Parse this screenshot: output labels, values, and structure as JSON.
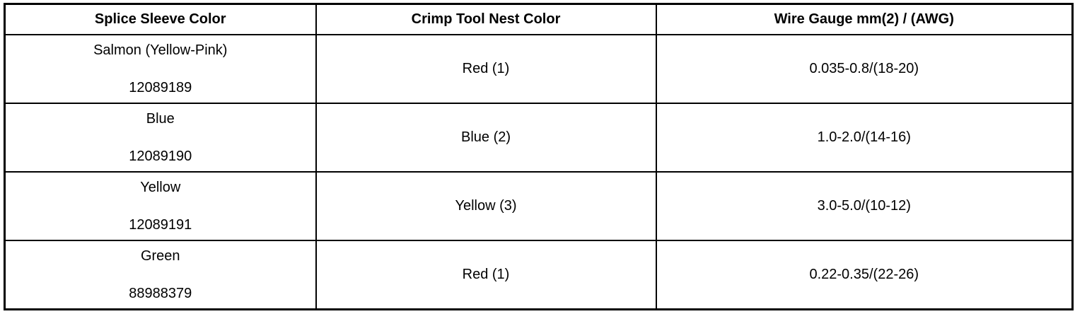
{
  "table": {
    "headers": [
      "Splice Sleeve Color",
      "Crimp Tool Nest Color",
      "Wire Gauge mm(2) / (AWG)"
    ],
    "rows": [
      {
        "sleeve_color": "Salmon (Yellow-Pink)",
        "part_number": "12089189",
        "nest_color": "Red (1)",
        "wire_gauge": "0.035-0.8/(18-20)"
      },
      {
        "sleeve_color": "Blue",
        "part_number": "12089190",
        "nest_color": "Blue (2)",
        "wire_gauge": "1.0-2.0/(14-16)"
      },
      {
        "sleeve_color": "Yellow",
        "part_number": "12089191",
        "nest_color": "Yellow (3)",
        "wire_gauge": "3.0-5.0/(10-12)"
      },
      {
        "sleeve_color": "Green",
        "part_number": "88988379",
        "nest_color": "Red (1)",
        "wire_gauge": "0.22-0.35/(22-26)"
      }
    ]
  }
}
